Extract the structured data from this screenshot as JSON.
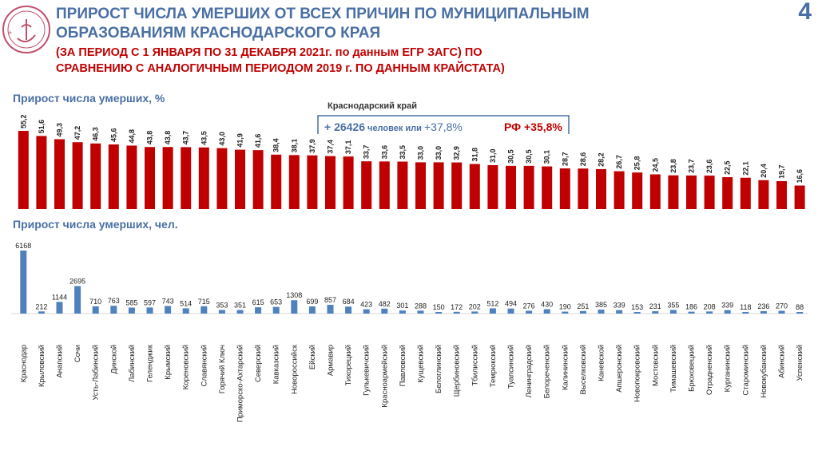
{
  "header": {
    "title_line1": "ПРИРОСТ ЧИСЛА УМЕРШИХ ОТ ВСЕХ ПРИЧИН ПО МУНИЦИПАЛЬНЫМ",
    "title_line2": "ОБРАЗОВАНИЯМ КРАСНОДАРСКОГО КРАЯ",
    "subtitle_line1": "(ЗА ПЕРИОД С 1 ЯНВАРЯ ПО 31 ДЕКАБРЯ  2021г. по данным ЕГР ЗАГС) ПО",
    "subtitle_line2": "СРАВНЕНИЮ С АНАЛОГИЧНЫМ ПЕРИОДОМ  2019 г. ПО ДАННЫМ КРАЙСТАТА)",
    "page_number": "4"
  },
  "colors": {
    "title": "#4a6fa5",
    "red_bars": "#c00000",
    "blue_bars": "#4f81bd",
    "subtitle": "#c00000"
  },
  "callout": {
    "region": "Краснодарский край",
    "prefix": "+ 26426",
    "mid": " человек или ",
    "percent": "+37,8%",
    "rf": "РФ +35,8%"
  },
  "chart_data": [
    {
      "type": "bar",
      "title": "Прирост числа умерших, %",
      "categories": [
        "Краснодар",
        "Крыловский",
        "Анапский",
        "Сочи",
        "Усть-Лабинский",
        "Динской",
        "Лабинский",
        "Геленджик",
        "Крымский",
        "Кореновский",
        "Славянский",
        "Горячий Ключ",
        "Приморско-Ахтарский",
        "Северский",
        "Кавказский",
        "Новороссийск",
        "Ейский",
        "Армавир",
        "Тихорецкий",
        "Гулькевичский",
        "Красноармейский",
        "Павловский",
        "Кущевский",
        "Белоглинский",
        "Щербиновский",
        "Тбилисский",
        "Темрюкский",
        "Туапсинский",
        "Ленинградский",
        "Белореченский",
        "Калининский",
        "Выселковский",
        "Каневской",
        "Апшеронский",
        "Новопокровский",
        "Мостовский",
        "Тимашевский",
        "Брюховецкий",
        "Отрадненский",
        "Курганинский",
        "Староминский",
        "Новокубанский",
        "Абинский",
        "Успенский"
      ],
      "values": [
        55.2,
        51.6,
        49.3,
        47.2,
        46.3,
        45.6,
        44.8,
        43.8,
        43.8,
        43.7,
        43.5,
        43.0,
        41.9,
        41.6,
        38.4,
        38.1,
        37.9,
        37.4,
        37.1,
        33.7,
        33.6,
        33.5,
        33.0,
        33.0,
        32.9,
        31.8,
        31.0,
        30.5,
        30.5,
        30.1,
        28.7,
        28.6,
        28.2,
        26.7,
        25.8,
        24.5,
        23.8,
        23.7,
        23.6,
        22.5,
        22.1,
        20.4,
        19.7,
        16.6
      ],
      "labels": [
        "55,2",
        "51,6",
        "49,3",
        "47,2",
        "46,3",
        "45,6",
        "44,8",
        "43,8",
        "43,8",
        "43,7",
        "43,5",
        "43,0",
        "41,9",
        "41,6",
        "38,4",
        "38,1",
        "37,9",
        "37,4",
        "37,1",
        "33,7",
        "33,6",
        "33,5",
        "33,0",
        "33,0",
        "32,9",
        "31,8",
        "31,0",
        "30,5",
        "30,5",
        "30,1",
        "28,7",
        "28,6",
        "28,2",
        "26,7",
        "25,8",
        "24,5",
        "23,8",
        "23,7",
        "23,6",
        "22,5",
        "22,1",
        "20,4",
        "19,7",
        "16,6"
      ],
      "ylim": [
        0,
        60
      ],
      "grid": false
    },
    {
      "type": "bar",
      "title": "Прирост числа умерших, чел.",
      "values": [
        6168,
        212,
        1144,
        2695,
        710,
        763,
        585,
        597,
        743,
        514,
        715,
        353,
        351,
        615,
        653,
        1308,
        699,
        857,
        684,
        423,
        482,
        301,
        288,
        150,
        172,
        202,
        512,
        494,
        276,
        430,
        190,
        251,
        385,
        339,
        153,
        231,
        355,
        186,
        208,
        339,
        118,
        236,
        270,
        88
      ],
      "labels": [
        "6168",
        "212",
        "1144",
        "2695",
        "710",
        "763",
        "585",
        "597",
        "743",
        "514",
        "715",
        "353",
        "351",
        "615",
        "653",
        "1308",
        "699",
        "857",
        "684",
        "423",
        "482",
        "301",
        "288",
        "150",
        "172",
        "202",
        "512",
        "494",
        "276",
        "430",
        "190",
        "251",
        "385",
        "339",
        "153",
        "231",
        "355",
        "186",
        "208",
        "339",
        "118",
        "236",
        "270",
        "88"
      ],
      "ylim": [
        0,
        6500
      ],
      "grid": false
    }
  ]
}
